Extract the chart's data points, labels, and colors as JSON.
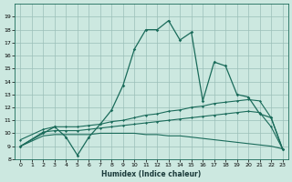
{
  "xlabel": "Humidex (Indice chaleur)",
  "background_color": "#cce8e0",
  "grid_color": "#9bbfb8",
  "line_color": "#1a6b5a",
  "xlim": [
    -0.5,
    23.5
  ],
  "ylim": [
    8,
    20
  ],
  "xticks": [
    0,
    1,
    2,
    3,
    4,
    5,
    6,
    7,
    8,
    9,
    10,
    11,
    12,
    13,
    14,
    15,
    16,
    17,
    18,
    19,
    20,
    21,
    22,
    23
  ],
  "yticks": [
    8,
    9,
    10,
    11,
    12,
    13,
    14,
    15,
    16,
    17,
    18,
    19
  ],
  "line_main_x": [
    0,
    2,
    3,
    4,
    5,
    6,
    7,
    8,
    9,
    10,
    11,
    12,
    13,
    14,
    15,
    16,
    17,
    18,
    19,
    20,
    21,
    22,
    23
  ],
  "line_main_y": [
    9.0,
    10.0,
    10.5,
    9.7,
    8.3,
    9.7,
    10.7,
    11.8,
    13.7,
    16.5,
    18.0,
    18.0,
    18.7,
    17.2,
    17.8,
    12.5,
    15.5,
    15.2,
    13.0,
    12.8,
    11.5,
    11.2,
    8.8
  ],
  "line_top_x": [
    0,
    2,
    3,
    4,
    5,
    6,
    7,
    8,
    9,
    10,
    11,
    12,
    13,
    14,
    15,
    16,
    17,
    18,
    19,
    20,
    21,
    22,
    23
  ],
  "line_top_y": [
    9.5,
    10.3,
    10.5,
    10.5,
    10.5,
    10.6,
    10.7,
    10.9,
    11.0,
    11.2,
    11.4,
    11.5,
    11.7,
    11.8,
    12.0,
    12.1,
    12.3,
    12.4,
    12.5,
    12.6,
    12.5,
    11.2,
    8.8
  ],
  "line_mid_x": [
    0,
    2,
    3,
    4,
    5,
    6,
    7,
    8,
    9,
    10,
    11,
    12,
    13,
    14,
    15,
    16,
    17,
    18,
    19,
    20,
    21,
    22,
    23
  ],
  "line_mid_y": [
    9.0,
    10.1,
    10.2,
    10.2,
    10.2,
    10.3,
    10.4,
    10.5,
    10.6,
    10.7,
    10.8,
    10.9,
    11.0,
    11.1,
    11.2,
    11.3,
    11.4,
    11.5,
    11.6,
    11.7,
    11.6,
    10.5,
    8.8
  ],
  "line_bot_x": [
    0,
    2,
    3,
    4,
    5,
    6,
    7,
    8,
    9,
    10,
    11,
    12,
    13,
    14,
    15,
    16,
    17,
    18,
    19,
    20,
    21,
    22,
    23
  ],
  "line_bot_y": [
    9.0,
    9.8,
    9.9,
    9.9,
    9.9,
    9.9,
    10.0,
    10.0,
    10.0,
    10.0,
    9.9,
    9.9,
    9.8,
    9.8,
    9.7,
    9.6,
    9.5,
    9.4,
    9.3,
    9.2,
    9.1,
    9.0,
    8.8
  ]
}
